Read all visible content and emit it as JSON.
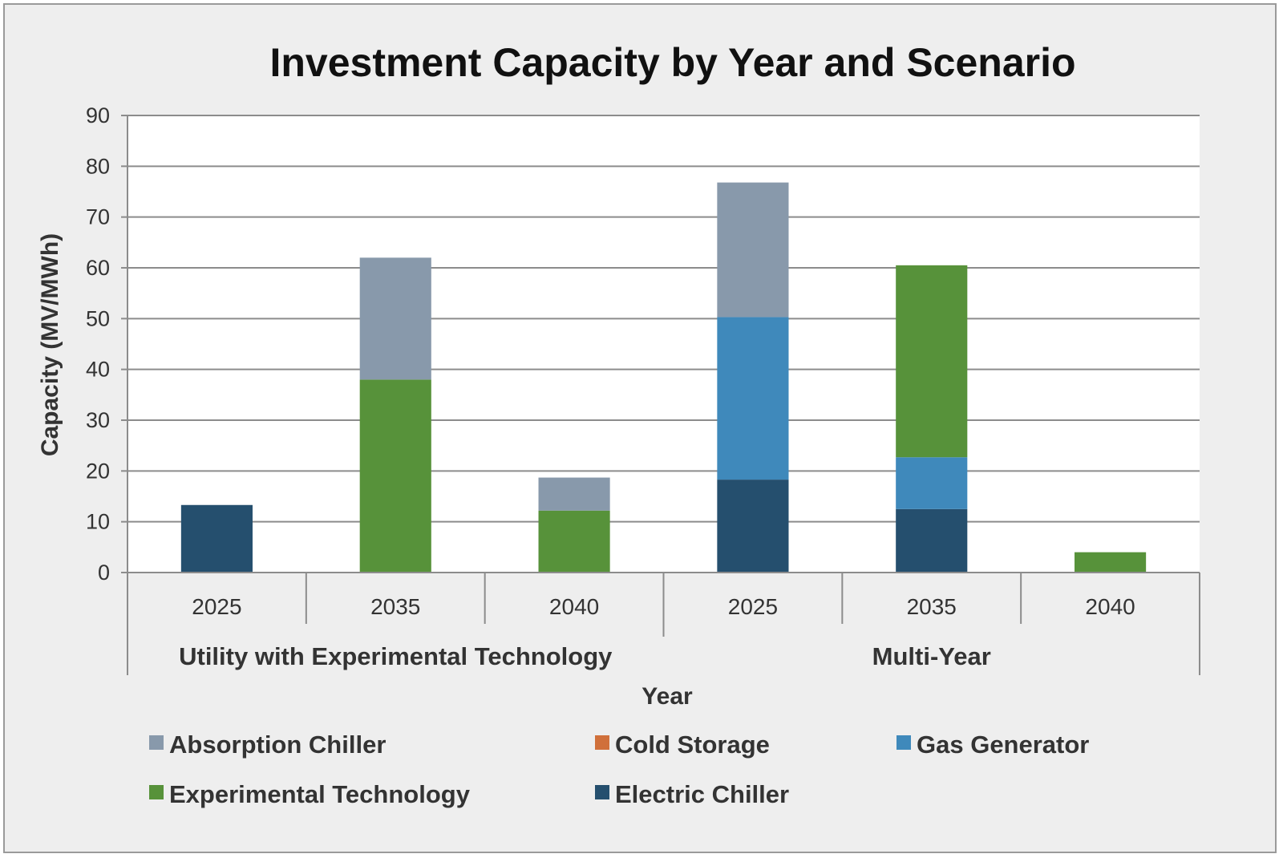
{
  "chart_data": {
    "type": "bar",
    "stacked": true,
    "title": "Investment Capacity by Year and Scenario",
    "xlabel": "Year",
    "ylabel": "Capacity (MV/MWh)",
    "ylim": [
      0,
      90
    ],
    "yticks": [
      0,
      10,
      20,
      30,
      40,
      50,
      60,
      70,
      80,
      90
    ],
    "grid": true,
    "legend_position": "bottom",
    "groups": [
      {
        "label": "Utility with Experimental Technology",
        "categories": [
          "2025",
          "2035",
          "2040"
        ]
      },
      {
        "label": "Multi-Year",
        "categories": [
          "2025",
          "2035",
          "2040"
        ]
      }
    ],
    "categories": [
      "2025",
      "2035",
      "2040",
      "2025",
      "2035",
      "2040"
    ],
    "series": [
      {
        "name": "Electric Chiller",
        "color": "#254f6e",
        "values": [
          13.3,
          0,
          0,
          18.3,
          12.5,
          0
        ]
      },
      {
        "name": "Experimental Technology",
        "color": "#57923a",
        "values": [
          0,
          38,
          12.2,
          0,
          0,
          4
        ]
      },
      {
        "name": "Gas Generator",
        "color": "#3f89bb",
        "values": [
          0,
          0,
          0,
          32,
          10.2,
          0
        ]
      },
      {
        "name": "Cold Storage",
        "color": "#d0703b",
        "values": [
          0,
          0,
          0,
          0,
          0,
          0
        ]
      },
      {
        "name": "Absorption Chiller",
        "color": "#8899ab",
        "values": [
          0,
          24,
          6.5,
          26.5,
          0,
          0
        ]
      },
      {
        "name": "Experimental Technology",
        "color": "#57923a",
        "values": [
          0,
          0,
          0,
          0,
          37.8,
          0
        ]
      }
    ],
    "legend": [
      {
        "name": "Absorption Chiller",
        "color": "#8899ab"
      },
      {
        "name": "Cold Storage",
        "color": "#d0703b"
      },
      {
        "name": "Gas Generator",
        "color": "#3f89bb"
      },
      {
        "name": "Experimental Technology",
        "color": "#57923a"
      },
      {
        "name": "Electric Chiller",
        "color": "#254f6e"
      }
    ]
  }
}
